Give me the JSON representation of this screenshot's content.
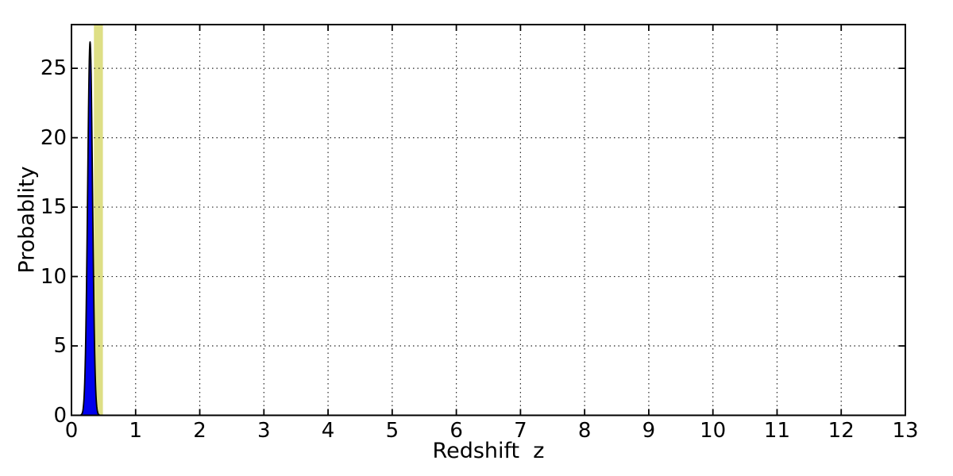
{
  "chart_data": {
    "type": "area",
    "title": "",
    "xlabel": "Redshift  z",
    "ylabel": "Probablity",
    "xlim": [
      0,
      13
    ],
    "ylim": [
      0,
      28.15
    ],
    "xticks": [
      0,
      1,
      2,
      3,
      4,
      5,
      6,
      7,
      8,
      9,
      10,
      11,
      12,
      13
    ],
    "yticks": [
      0,
      5,
      10,
      15,
      20,
      25
    ],
    "grid": {
      "style": "dotted",
      "color": "#000000",
      "x_values": [
        1,
        2,
        3,
        4,
        5,
        6,
        7,
        8,
        9,
        10,
        11,
        12
      ],
      "y_values": [
        5,
        10,
        15,
        20,
        25
      ]
    },
    "pdf_curve": {
      "name": "redshift-probability-density",
      "shape": "gaussian",
      "center": 0.29,
      "sigma": 0.038,
      "peak": 26.9,
      "x_range": [
        0.13,
        0.45
      ],
      "fill_color": "#0000EC",
      "edge_color": "#000000"
    },
    "highlight_band": {
      "name": "reference-redshift-band",
      "x0": 0.35,
      "x1": 0.49,
      "color": "#DEDF85"
    },
    "frame_color": "#000000",
    "background_color": "#FFFFFF",
    "legend": null
  }
}
